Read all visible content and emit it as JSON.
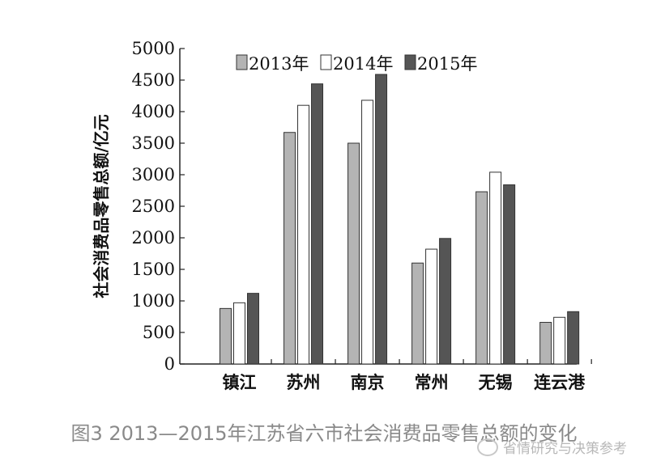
{
  "chart_data": {
    "type": "bar",
    "ylabel": "社会消费品零售总额/亿元",
    "xlabel": "",
    "ylim": [
      0,
      5000
    ],
    "yticks": [
      0,
      500,
      1000,
      1500,
      2000,
      2500,
      3000,
      3500,
      4000,
      4500,
      5000
    ],
    "categories": [
      "镇江",
      "苏州",
      "南京",
      "常州",
      "无锡",
      "连云港"
    ],
    "series": [
      {
        "name": "2013年",
        "color": "#b4b4b4",
        "values": [
          880,
          3670,
          3500,
          1600,
          2730,
          660
        ]
      },
      {
        "name": "2014年",
        "color": "#ffffff",
        "values": [
          970,
          4100,
          4180,
          1820,
          3040,
          740
        ]
      },
      {
        "name": "2015年",
        "color": "#555555",
        "values": [
          1120,
          4440,
          4590,
          1990,
          2840,
          830
        ]
      }
    ],
    "grid": false,
    "legend": "top"
  },
  "caption": "图3 2013—2015年江苏省六市社会消费品零售总额的变化",
  "watermark": "省情研究与决策参考"
}
